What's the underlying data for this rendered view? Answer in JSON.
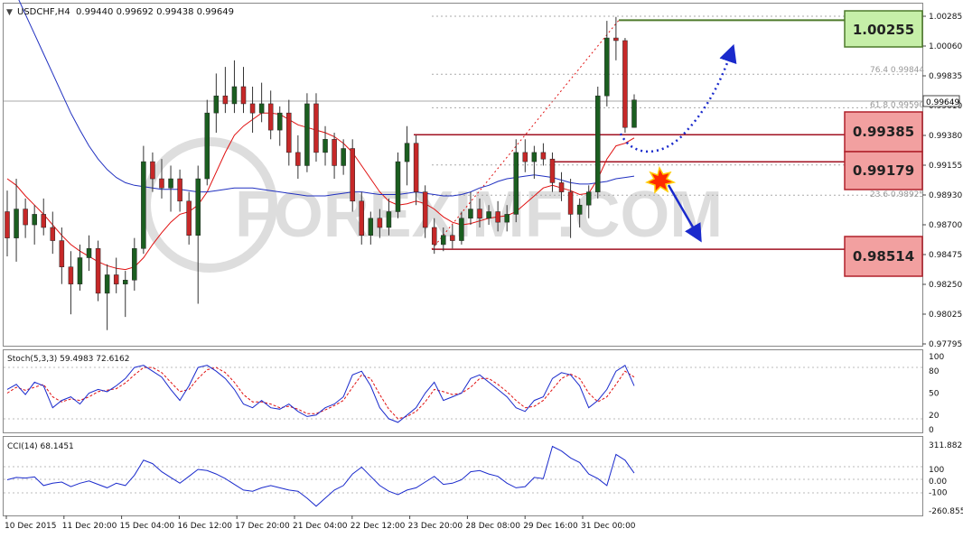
{
  "header": {
    "symbol_line": "USDCHF,H4  0.99440 0.99692 0.99438 0.99649"
  },
  "watermark": {
    "text": "FOREXIMF.COM"
  },
  "price_axis": {
    "labels": [
      "1.00285",
      "1.00060",
      "0.99835",
      "0.99610",
      "0.99380",
      "0.99155",
      "0.98930",
      "0.98700",
      "0.98475",
      "0.98250",
      "0.98025",
      "0.97795"
    ],
    "current_price": "0.99649"
  },
  "fib_labels": [
    "76.4  0.99844",
    "61.8  0.99590",
    "23.6  0.98925"
  ],
  "level_boxes": {
    "target": {
      "text": "1.00255",
      "bg": "#c6efa8",
      "border": "#4d7a2a"
    },
    "resistance": {
      "text": "0.99385",
      "bg": "#f2a0a0",
      "border": "#b0202a"
    },
    "pivot": {
      "text": "0.99179",
      "bg": "#f2a0a0",
      "border": "#b0202a"
    },
    "support": {
      "text": "0.98514",
      "bg": "#f2a0a0",
      "border": "#b0202a"
    }
  },
  "stoch": {
    "label": "Stoch(5,3,3) 59.4983 72.6162",
    "levels": [
      "100",
      "80",
      "50",
      "20",
      "0"
    ]
  },
  "cci": {
    "label": "CCI(14) 68.1451",
    "levels": [
      "311.8821",
      "100",
      "0.00",
      "-100",
      "-260.8553"
    ]
  },
  "time_axis": {
    "labels": [
      "10 Dec 2015",
      "11 Dec 20:00",
      "15 Dec 04:00",
      "16 Dec 12:00",
      "17 Dec 20:00",
      "21 Dec 04:00",
      "22 Dec 12:00",
      "23 Dec 20:00",
      "28 Dec 08:00",
      "29 Dec 16:00",
      "31 Dec 00:00"
    ]
  },
  "colors": {
    "bull": "#1b5e20",
    "bear": "#c62828",
    "ma_red": "#e01010",
    "ma_blue": "#2030c0",
    "stoch_main": "#1a2acc",
    "stoch_signal": "#e01010",
    "cci": "#1a2acc",
    "level_line": "#a01020",
    "target_line": "#4d7a2a"
  },
  "chart_data": {
    "type": "candlestick",
    "symbol": "USDCHF",
    "timeframe": "H4",
    "ylim": [
      0.97795,
      1.00285
    ],
    "last_bar": {
      "open": 0.9944,
      "high": 0.99692,
      "low": 0.99438,
      "close": 0.99649
    },
    "candles": [
      [
        0.988,
        0.9896,
        0.9846,
        0.986
      ],
      [
        0.986,
        0.9905,
        0.9842,
        0.9882
      ],
      [
        0.9882,
        0.989,
        0.986,
        0.987
      ],
      [
        0.987,
        0.9885,
        0.9855,
        0.9878
      ],
      [
        0.9878,
        0.989,
        0.9862,
        0.9868
      ],
      [
        0.9868,
        0.988,
        0.9848,
        0.9858
      ],
      [
        0.9858,
        0.9868,
        0.9825,
        0.9838
      ],
      [
        0.9838,
        0.985,
        0.9802,
        0.9825
      ],
      [
        0.9825,
        0.9855,
        0.982,
        0.9845
      ],
      [
        0.9845,
        0.9862,
        0.9835,
        0.9852
      ],
      [
        0.9852,
        0.9858,
        0.9812,
        0.9818
      ],
      [
        0.9818,
        0.984,
        0.979,
        0.9832
      ],
      [
        0.9832,
        0.9845,
        0.9818,
        0.9825
      ],
      [
        0.9825,
        0.9835,
        0.98,
        0.9828
      ],
      [
        0.9828,
        0.986,
        0.982,
        0.9852
      ],
      [
        0.9852,
        0.993,
        0.9848,
        0.9918
      ],
      [
        0.9918,
        0.9925,
        0.9895,
        0.9905
      ],
      [
        0.9905,
        0.992,
        0.989,
        0.9898
      ],
      [
        0.9898,
        0.9915,
        0.988,
        0.9905
      ],
      [
        0.9905,
        0.9912,
        0.988,
        0.9888
      ],
      [
        0.9888,
        0.9895,
        0.9855,
        0.9862
      ],
      [
        0.9862,
        0.9915,
        0.981,
        0.9905
      ],
      [
        0.9905,
        0.9965,
        0.99,
        0.9955
      ],
      [
        0.9955,
        0.9985,
        0.994,
        0.9968
      ],
      [
        0.9968,
        0.999,
        0.9955,
        0.9962
      ],
      [
        0.9962,
        0.9995,
        0.9955,
        0.9975
      ],
      [
        0.9975,
        0.999,
        0.9955,
        0.9962
      ],
      [
        0.9962,
        0.9975,
        0.994,
        0.9955
      ],
      [
        0.9955,
        0.9978,
        0.9948,
        0.9962
      ],
      [
        0.9962,
        0.9972,
        0.9935,
        0.9942
      ],
      [
        0.9942,
        0.996,
        0.993,
        0.9955
      ],
      [
        0.9955,
        0.9965,
        0.9915,
        0.9925
      ],
      [
        0.9925,
        0.9938,
        0.9905,
        0.9915
      ],
      [
        0.9915,
        0.997,
        0.991,
        0.9962
      ],
      [
        0.9962,
        0.997,
        0.9918,
        0.9925
      ],
      [
        0.9925,
        0.9945,
        0.9915,
        0.9935
      ],
      [
        0.9935,
        0.994,
        0.9905,
        0.9915
      ],
      [
        0.9915,
        0.9935,
        0.9908,
        0.9928
      ],
      [
        0.9928,
        0.9935,
        0.988,
        0.9888
      ],
      [
        0.9888,
        0.9895,
        0.9855,
        0.9862
      ],
      [
        0.9862,
        0.988,
        0.9855,
        0.9875
      ],
      [
        0.9875,
        0.9882,
        0.986,
        0.9868
      ],
      [
        0.9868,
        0.989,
        0.9862,
        0.988
      ],
      [
        0.988,
        0.9925,
        0.9875,
        0.9918
      ],
      [
        0.9918,
        0.9945,
        0.99,
        0.9932
      ],
      [
        0.9932,
        0.9938,
        0.9885,
        0.9895
      ],
      [
        0.9895,
        0.99,
        0.986,
        0.9868
      ],
      [
        0.9868,
        0.9875,
        0.9848,
        0.9855
      ],
      [
        0.9855,
        0.9868,
        0.985,
        0.9862
      ],
      [
        0.9862,
        0.987,
        0.9852,
        0.9858
      ],
      [
        0.9858,
        0.988,
        0.9855,
        0.9875
      ],
      [
        0.9875,
        0.9895,
        0.987,
        0.9882
      ],
      [
        0.9882,
        0.989,
        0.9868,
        0.9875
      ],
      [
        0.9875,
        0.9885,
        0.987,
        0.988
      ],
      [
        0.988,
        0.9888,
        0.9865,
        0.9872
      ],
      [
        0.9872,
        0.9885,
        0.9865,
        0.9878
      ],
      [
        0.9878,
        0.9935,
        0.9872,
        0.9925
      ],
      [
        0.9925,
        0.9935,
        0.991,
        0.9918
      ],
      [
        0.9918,
        0.993,
        0.9905,
        0.9925
      ],
      [
        0.9925,
        0.9932,
        0.9915,
        0.992
      ],
      [
        0.992,
        0.9925,
        0.9895,
        0.9902
      ],
      [
        0.9902,
        0.991,
        0.9888,
        0.9895
      ],
      [
        0.9895,
        0.9905,
        0.986,
        0.9878
      ],
      [
        0.9878,
        0.989,
        0.9868,
        0.9885
      ],
      [
        0.9885,
        0.99,
        0.9875,
        0.9895
      ],
      [
        0.9895,
        0.9975,
        0.989,
        0.9968
      ],
      [
        0.9968,
        1.0025,
        0.996,
        1.0012
      ],
      [
        1.0012,
        1.0028,
        0.9995,
        1.001
      ],
      [
        1.001,
        1.0012,
        0.994,
        0.9944
      ],
      [
        0.9944,
        0.99692,
        0.99438,
        0.99649
      ]
    ],
    "moving_averages": [
      {
        "color": "red",
        "values": [
          0.9905,
          0.99,
          0.9892,
          0.9885,
          0.9878,
          0.987,
          0.9862,
          0.9855,
          0.985,
          0.9846,
          0.9842,
          0.9839,
          0.9837,
          0.9836,
          0.9838,
          0.9845,
          0.9855,
          0.9864,
          0.9872,
          0.9878,
          0.988,
          0.9885,
          0.9895,
          0.991,
          0.9925,
          0.9938,
          0.9945,
          0.995,
          0.9955,
          0.9955,
          0.9954,
          0.995,
          0.9946,
          0.9944,
          0.9942,
          0.994,
          0.9937,
          0.9932,
          0.9925,
          0.9915,
          0.9905,
          0.9895,
          0.9888,
          0.9885,
          0.9886,
          0.9888,
          0.9886,
          0.9882,
          0.9876,
          0.9872,
          0.987,
          0.9871,
          0.9873,
          0.9875,
          0.9876,
          0.9877,
          0.988,
          0.9886,
          0.9892,
          0.9898,
          0.99,
          0.9898,
          0.9896,
          0.9893,
          0.9894,
          0.9905,
          0.992,
          0.993,
          0.9932,
          0.9936
        ]
      },
      {
        "color": "blue",
        "values": [
          1.006,
          1.0045,
          1.003,
          1.0015,
          1.0,
          0.9985,
          0.997,
          0.9955,
          0.9942,
          0.993,
          0.992,
          0.9912,
          0.9906,
          0.9902,
          0.99,
          0.9899,
          0.9898,
          0.9897,
          0.9897,
          0.9897,
          0.9896,
          0.9895,
          0.9895,
          0.9896,
          0.9897,
          0.9898,
          0.9898,
          0.9898,
          0.9897,
          0.9896,
          0.9895,
          0.9894,
          0.9893,
          0.9892,
          0.9892,
          0.9892,
          0.9893,
          0.9894,
          0.9895,
          0.9895,
          0.9894,
          0.9893,
          0.9893,
          0.9893,
          0.9894,
          0.9895,
          0.9894,
          0.9893,
          0.9892,
          0.9892,
          0.9893,
          0.9895,
          0.9898,
          0.99,
          0.9903,
          0.9905,
          0.9906,
          0.9907,
          0.9908,
          0.9907,
          0.9906,
          0.9904,
          0.9902,
          0.9901,
          0.9901,
          0.9902,
          0.9903,
          0.9905,
          0.9906,
          0.9907
        ]
      }
    ],
    "levels": [
      1.00255,
      0.99385,
      0.99179,
      0.98514
    ],
    "stochastic": {
      "main": [
        55,
        62,
        48,
        65,
        60,
        30,
        40,
        45,
        35,
        50,
        55,
        52,
        60,
        70,
        85,
        88,
        80,
        72,
        55,
        40,
        60,
        85,
        88,
        80,
        70,
        55,
        35,
        30,
        40,
        30,
        28,
        35,
        25,
        18,
        20,
        30,
        35,
        45,
        75,
        80,
        60,
        30,
        15,
        10,
        20,
        30,
        50,
        65,
        40,
        45,
        50,
        70,
        75,
        65,
        55,
        45,
        30,
        25,
        40,
        45,
        70,
        78,
        75,
        60,
        30,
        40,
        55,
        80,
        88,
        60
      ],
      "signal": [
        50,
        58,
        54,
        58,
        62,
        45,
        38,
        42,
        40,
        45,
        52,
        54,
        56,
        64,
        75,
        85,
        85,
        78,
        65,
        52,
        55,
        70,
        82,
        85,
        78,
        65,
        48,
        38,
        38,
        35,
        30,
        32,
        28,
        22,
        22,
        27,
        33,
        40,
        58,
        75,
        70,
        48,
        28,
        15,
        18,
        25,
        38,
        55,
        52,
        48,
        50,
        58,
        70,
        70,
        62,
        52,
        40,
        30,
        32,
        40,
        55,
        70,
        76,
        70,
        50,
        38,
        45,
        62,
        80,
        72
      ]
    },
    "cci": [
      10,
      30,
      25,
      35,
      -40,
      -20,
      -10,
      -50,
      -20,
      0,
      -30,
      -60,
      -20,
      -40,
      50,
      180,
      150,
      80,
      30,
      -20,
      40,
      100,
      90,
      60,
      20,
      -30,
      -80,
      -90,
      -60,
      -40,
      -60,
      -80,
      -90,
      -150,
      -220,
      -150,
      -80,
      -40,
      60,
      120,
      40,
      -40,
      -90,
      -120,
      -80,
      -60,
      -10,
      40,
      -30,
      -20,
      10,
      80,
      90,
      60,
      40,
      -20,
      -60,
      -50,
      30,
      20,
      300,
      260,
      200,
      160,
      60,
      20,
      -40,
      230,
      180,
      68
    ]
  }
}
